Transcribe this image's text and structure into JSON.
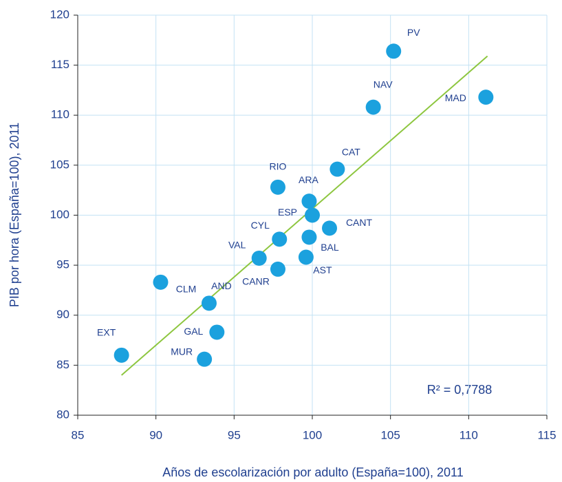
{
  "chart_data": {
    "type": "scatter",
    "x_label": "Años de escolarización por adulto (España=100), 2011",
    "y_label": "PIB por hora (España=100), 2011",
    "labels": [
      "PV",
      "NAV",
      "MAD",
      "CAT",
      "RIO",
      "ARA",
      "ESP",
      "CANT",
      "CYL",
      "BAL",
      "VAL",
      "AST",
      "CANR",
      "CLM",
      "AND",
      "GAL",
      "EXT",
      "MUR"
    ],
    "x": [
      105.2,
      103.9,
      111.1,
      101.6,
      97.8,
      99.8,
      100.0,
      101.1,
      97.9,
      99.8,
      96.6,
      99.6,
      97.8,
      90.3,
      93.4,
      93.9,
      87.8,
      93.1
    ],
    "values": [
      116.4,
      110.8,
      111.8,
      104.6,
      102.8,
      101.4,
      100.0,
      98.7,
      97.6,
      97.8,
      95.7,
      95.8,
      94.6,
      93.3,
      91.2,
      88.3,
      86.0,
      85.6
    ],
    "color": "#1ba1de",
    "trendline": {
      "x": [
        87.8,
        111.2
      ],
      "values": [
        84.0,
        115.9
      ],
      "color": "#8dc63f"
    },
    "annotation": "R² = 0,7788",
    "xlim": [
      85,
      115
    ],
    "xticks": [
      85,
      90,
      95,
      100,
      105,
      110,
      115
    ],
    "ylim": [
      80,
      120
    ],
    "yticks": [
      80,
      85,
      90,
      95,
      100,
      105,
      110,
      115,
      120
    ],
    "grid": true
  }
}
